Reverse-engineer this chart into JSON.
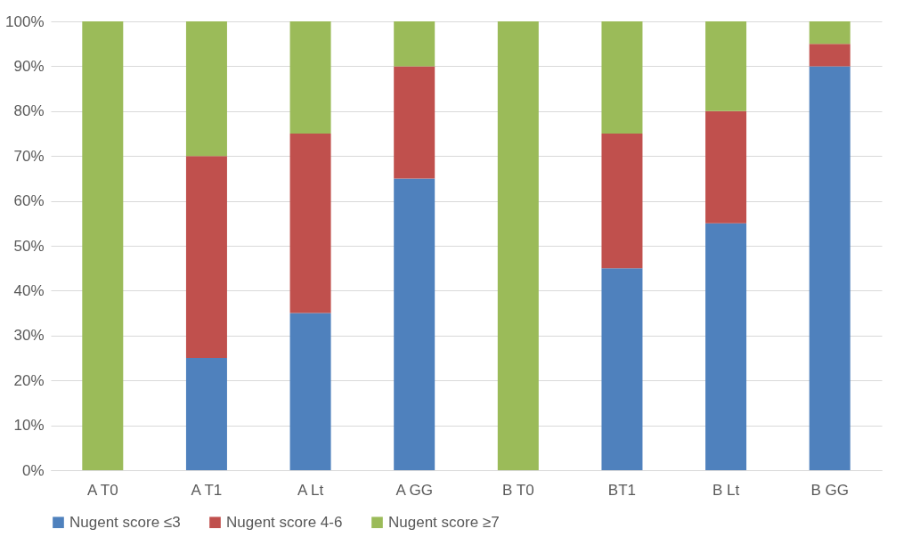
{
  "chart_data": {
    "type": "bar",
    "stacked": true,
    "categories": [
      "A T0",
      "A T1",
      "A Lt",
      "A GG",
      "B T0",
      "BT1",
      "B Lt",
      "B GG"
    ],
    "series": [
      {
        "name": "Nugent score ≤3",
        "color": "#4f81bd",
        "values": [
          0,
          25,
          35,
          65,
          0,
          45,
          55,
          90
        ]
      },
      {
        "name": "Nugent score 4-6",
        "color": "#c0504d",
        "values": [
          0,
          45,
          40,
          25,
          0,
          30,
          25,
          5
        ]
      },
      {
        "name": "Nugent score ≥7",
        "color": "#9bbb59",
        "values": [
          100,
          30,
          25,
          10,
          100,
          25,
          20,
          5
        ]
      }
    ],
    "ylim": [
      0,
      100
    ],
    "yticks": [
      {
        "value": 0,
        "label": "0%"
      },
      {
        "value": 10,
        "label": "10%"
      },
      {
        "value": 20,
        "label": "20%"
      },
      {
        "value": 30,
        "label": "30%"
      },
      {
        "value": 40,
        "label": "40%"
      },
      {
        "value": 50,
        "label": "50%"
      },
      {
        "value": 60,
        "label": "60%"
      },
      {
        "value": 70,
        "label": "70%"
      },
      {
        "value": 80,
        "label": "80%"
      },
      {
        "value": 90,
        "label": "90%"
      },
      {
        "value": 100,
        "label": "100%"
      }
    ],
    "grid": "y",
    "legend": "bottom"
  }
}
